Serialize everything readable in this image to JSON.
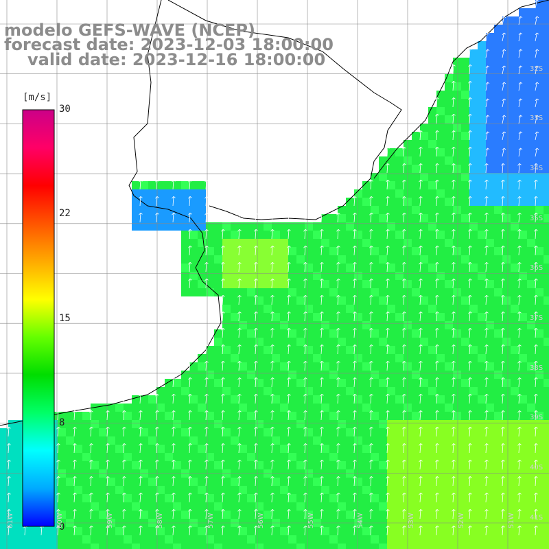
{
  "title": {
    "line1": "modelo GEFS-WAVE (NCEP)",
    "line2": "forecast date: 2023-12-03 18:00:00",
    "line3": "valid date: 2023-12-16 18:00:00"
  },
  "colorbar": {
    "unit": "[m/s]",
    "ticks": [
      "30",
      "22",
      "15",
      "8",
      "0"
    ],
    "colors": [
      "#0000ff",
      "#00aaff",
      "#00ffff",
      "#00ff66",
      "#00dd00",
      "#66ff00",
      "#ffff00",
      "#ffaa00",
      "#ff5500",
      "#ff0000",
      "#ff0066",
      "#cc0088"
    ]
  },
  "lat_labels": [
    "32S",
    "33S",
    "34S",
    "35S",
    "36S",
    "37S",
    "38S",
    "39S",
    "40S",
    "41S"
  ],
  "lon_labels": [
    "61W",
    "60W",
    "59W",
    "58W",
    "57W",
    "56W",
    "55W",
    "54W",
    "53W",
    "52W",
    "51W"
  ],
  "colors": {
    "land": "#ffffff",
    "grid": "#888888",
    "coast": "#000000",
    "arrow": "#ffffff"
  }
}
